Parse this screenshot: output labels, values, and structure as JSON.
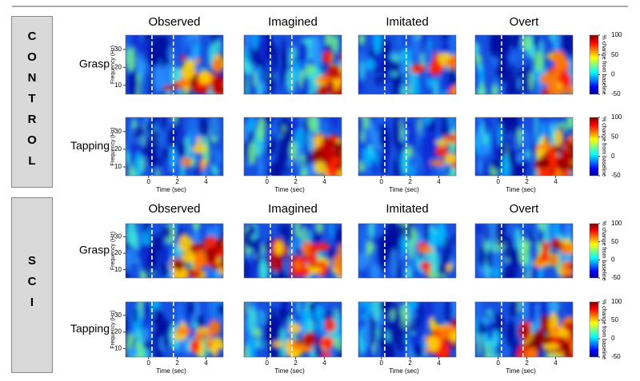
{
  "groups": [
    {
      "label": "CONTROL"
    },
    {
      "label": "SCI"
    }
  ],
  "columns": [
    "Observed",
    "Imagined",
    "Imitated",
    "Overt"
  ],
  "rows": [
    "Grasp",
    "Tapping"
  ],
  "y_label": "Frequency (Hz)",
  "x_label": "Time (sec)",
  "xlim": [
    -1.6,
    5.2
  ],
  "xticks": [
    0,
    2,
    4
  ],
  "ylim": [
    5,
    38
  ],
  "yticks": [
    10,
    20,
    30
  ],
  "colorbar": {
    "label": "% change from baseline",
    "lim": [
      -50,
      100
    ],
    "ticks": [
      -50,
      0,
      50,
      100
    ]
  }
}
